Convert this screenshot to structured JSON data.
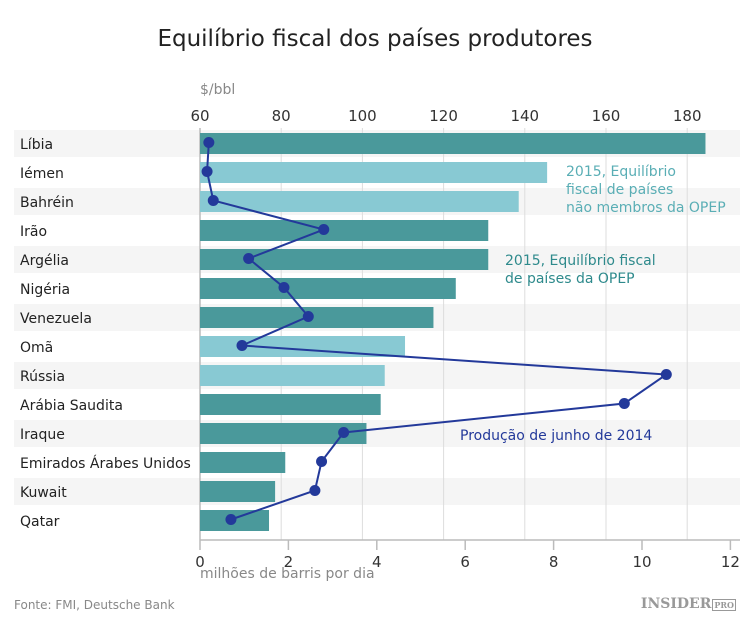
{
  "chart_data": {
    "type": "bar",
    "title": "Equilíbrio fiscal dos países produtores",
    "categories": [
      "Líbia",
      "Iémen",
      "Bahréin",
      "Irão",
      "Argélia",
      "Nigéria",
      "Venezuela",
      "Omã",
      "Rússia",
      "Arábia Saudita",
      "Iraque",
      "Emirados Árabes Unidos",
      "Kuwait",
      "Qatar"
    ],
    "top_axis": {
      "label": "$/bbl",
      "range": [
        60,
        185
      ],
      "ticks": [
        60,
        80,
        100,
        120,
        140,
        160,
        180
      ]
    },
    "bottom_axis": {
      "label": "milhões de barris por dia",
      "range": [
        0,
        12
      ],
      "ticks": [
        0,
        2,
        4,
        6,
        8,
        10,
        12
      ]
    },
    "series": [
      {
        "name": "2015, Equilíbrio fiscal de países da OPEP / não membros da OPEP",
        "type": "bar",
        "axis": "top",
        "values": [
          184.5,
          145.5,
          138.5,
          131,
          131,
          123,
          117.5,
          110.5,
          105.5,
          104.5,
          101,
          81,
          78.5,
          77
        ],
        "opec": [
          true,
          false,
          false,
          true,
          true,
          true,
          true,
          false,
          false,
          true,
          true,
          true,
          true,
          true
        ]
      },
      {
        "name": "Produção de junho de 2014",
        "type": "line",
        "axis": "bottom",
        "values": [
          0.2,
          0.16,
          0.3,
          2.8,
          1.1,
          1.9,
          2.45,
          0.95,
          10.55,
          9.6,
          3.25,
          2.75,
          2.6,
          0.7
        ]
      }
    ],
    "annotations": {
      "non_opec": "2015, Equilíbrio fiscal de países não membros da OPEP",
      "non_opec_lines": [
        "2015, Equilíbrio",
        "fiscal de países",
        "não membros da OPEP"
      ],
      "opec_lines": [
        "2015, Equilíbrio fiscal",
        "de países da OPEP"
      ],
      "production": "Produção de junho de 2014"
    },
    "colors": {
      "opec": "#4a999b",
      "non_opec": "#88c9d3",
      "line": "#23399a"
    },
    "grid": true,
    "legend": "inline annotations"
  },
  "footer": {
    "source": "Fonte: FMI, Deutsche Bank",
    "logo": "INSIDER",
    "logo_sub": "PRO"
  }
}
